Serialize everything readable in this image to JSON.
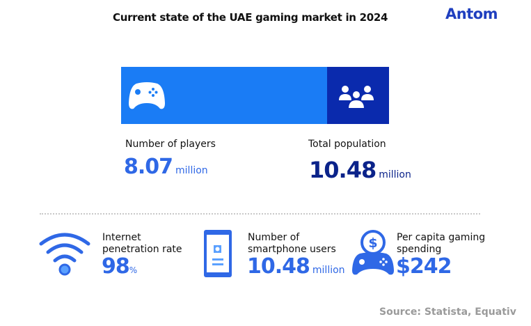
{
  "title": "Current state of the UAE gaming market in 2024",
  "logo": "Antom",
  "colors": {
    "players_bar": "#1a7cf5",
    "population_bar": "#0a2aad",
    "value_light": "#2f68e6",
    "value_dark": "#0b238a"
  },
  "chart_data": {
    "type": "bar",
    "categories": [
      "Number of players",
      "Total population"
    ],
    "values": [
      8.07,
      10.48
    ],
    "unit": "million"
  },
  "players": {
    "label": "Number of players",
    "value": "8.07",
    "unit": "million",
    "icon": "gamepad-icon"
  },
  "population": {
    "label": "Total population",
    "value": "10.48",
    "unit": "million",
    "icon": "people-group-icon"
  },
  "stats": [
    {
      "label_line1": "Internet",
      "label_line2": "penetration rate",
      "value": "98",
      "unit": "%",
      "icon": "wifi-icon"
    },
    {
      "label_line1": "Number of",
      "label_line2": "smartphone users",
      "value": "10.48",
      "unit": "million",
      "icon": "smartphone-icon"
    },
    {
      "label_line1": "Per capita gaming",
      "label_line2": "spending",
      "value": "$242",
      "unit": "",
      "icon": "gamepad-dollar-icon"
    }
  ],
  "source": "Source: Statista, Equativ"
}
